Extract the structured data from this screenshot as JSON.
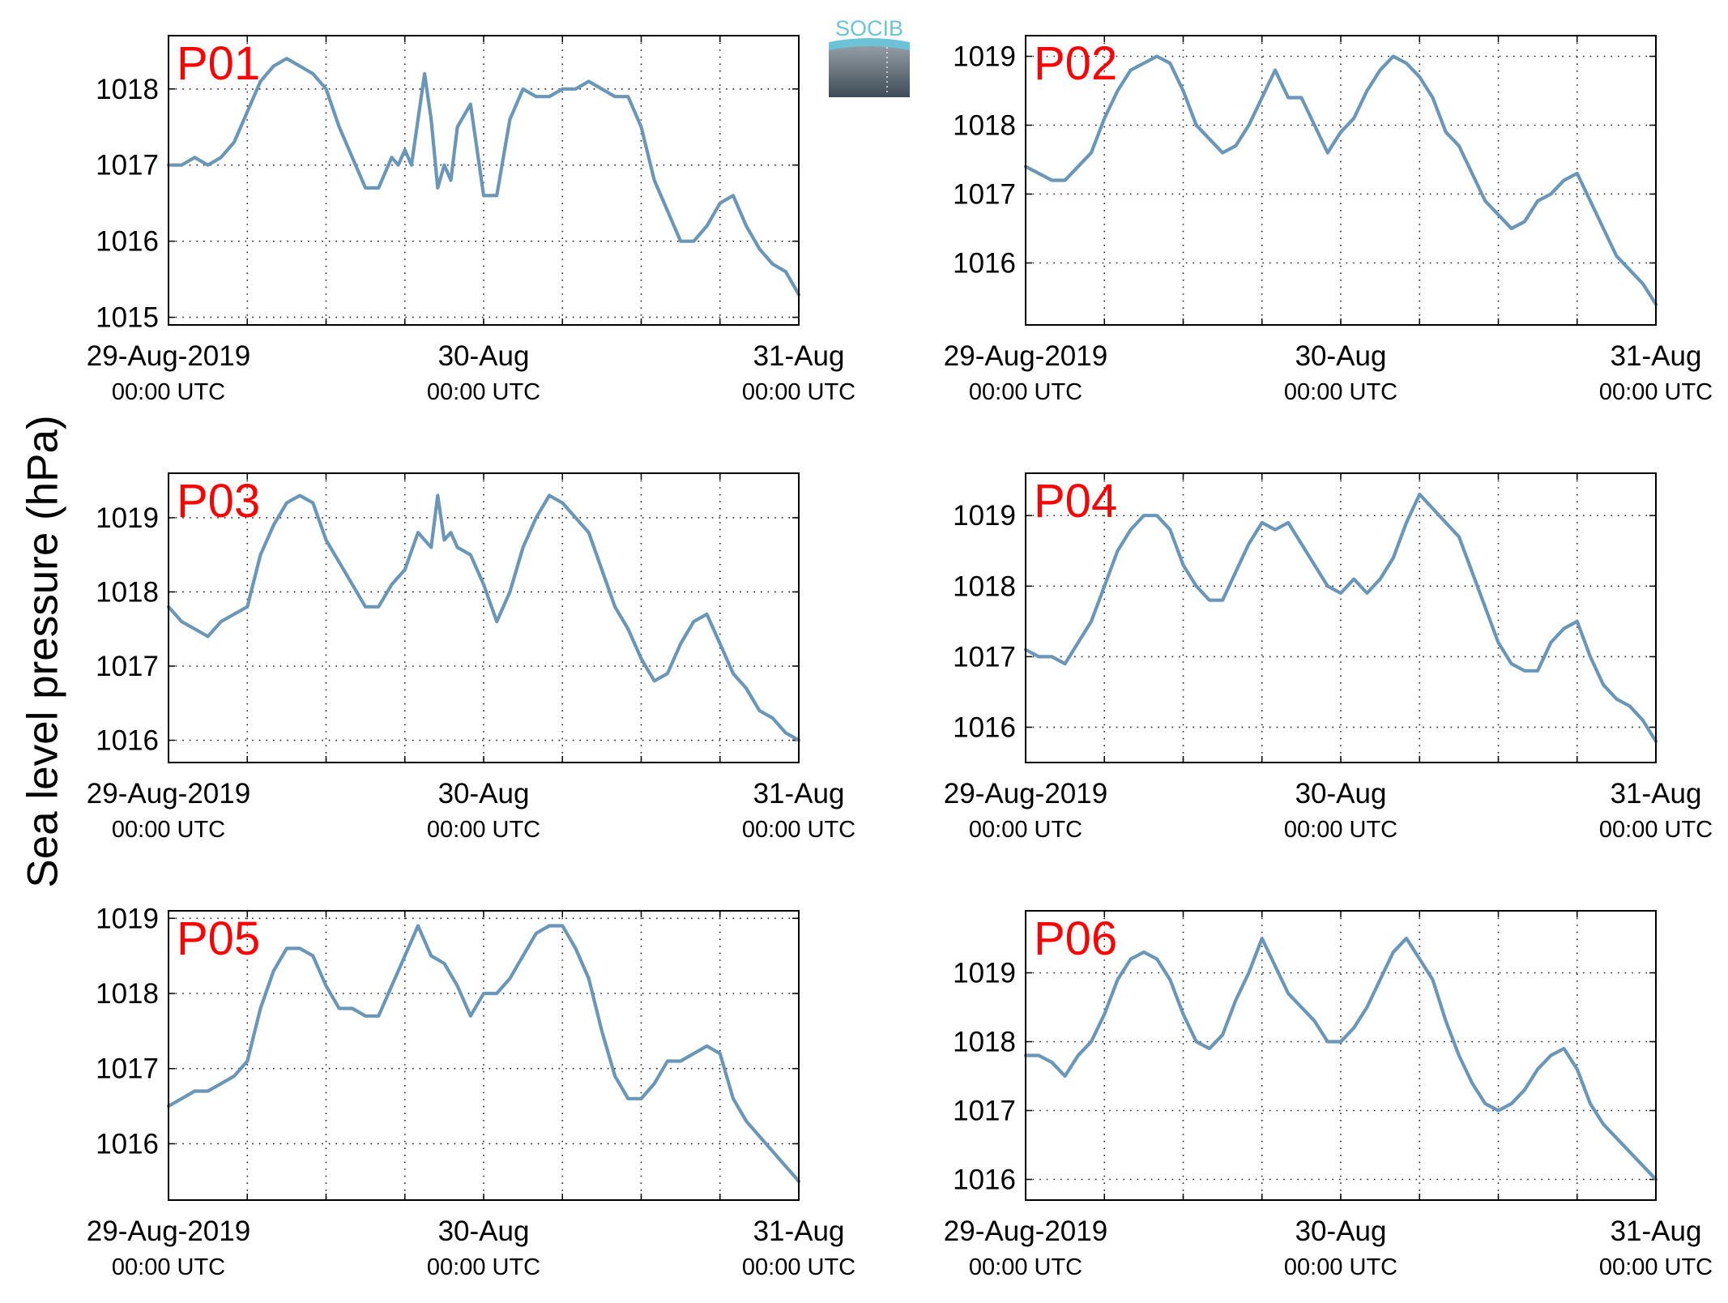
{
  "figure": {
    "ylabel": "Sea level pressure (hPa)",
    "logo_text": "SOCIB",
    "line_color": "#6a96b8",
    "panel_label_color": "#ff0000"
  },
  "chart_data": [
    {
      "type": "line",
      "panel": "P01",
      "xlim": [
        0,
        48
      ],
      "xticks": [
        0,
        24,
        48
      ],
      "xtick_labels": [
        [
          "29-Aug-2019",
          "00:00 UTC"
        ],
        [
          "30-Aug",
          "00:00 UTC"
        ],
        [
          "31-Aug",
          "00:00 UTC"
        ]
      ],
      "ylim": [
        1014.9,
        1018.7
      ],
      "yticks": [
        1015,
        1016,
        1017,
        1018
      ],
      "grid": true,
      "x": [
        0,
        1,
        2,
        3,
        4,
        5,
        6,
        7,
        8,
        9,
        10,
        11,
        12,
        13,
        14,
        15,
        16,
        16.5,
        17,
        17.5,
        18,
        18.5,
        19,
        19.5,
        20,
        20.5,
        21,
        21.5,
        22,
        23,
        24,
        25,
        26,
        27,
        28,
        29,
        30,
        31,
        32,
        33,
        34,
        35,
        36,
        37,
        38,
        39,
        40,
        41,
        42,
        43,
        44,
        45,
        46,
        47,
        48
      ],
      "y": [
        1017.0,
        1017.0,
        1017.1,
        1017.0,
        1017.1,
        1017.3,
        1017.7,
        1018.1,
        1018.3,
        1018.4,
        1018.3,
        1018.2,
        1018.0,
        1017.5,
        1017.1,
        1016.7,
        1016.7,
        1016.9,
        1017.1,
        1017.0,
        1017.2,
        1017.0,
        1017.6,
        1018.2,
        1017.6,
        1016.7,
        1017.0,
        1016.8,
        1017.5,
        1017.8,
        1016.6,
        1016.6,
        1017.6,
        1018.0,
        1017.9,
        1017.9,
        1018.0,
        1018.0,
        1018.1,
        1018.0,
        1017.9,
        1017.9,
        1017.5,
        1016.8,
        1016.4,
        1016.0,
        1016.0,
        1016.2,
        1016.5,
        1016.6,
        1016.2,
        1015.9,
        1015.7,
        1015.6,
        1015.3
      ]
    },
    {
      "type": "line",
      "panel": "P02",
      "xlim": [
        0,
        48
      ],
      "xticks": [
        0,
        24,
        48
      ],
      "xtick_labels": [
        [
          "29-Aug-2019",
          "00:00 UTC"
        ],
        [
          "30-Aug",
          "00:00 UTC"
        ],
        [
          "31-Aug",
          "00:00 UTC"
        ]
      ],
      "ylim": [
        1015.1,
        1019.3
      ],
      "yticks": [
        1016,
        1017,
        1018,
        1019
      ],
      "grid": true,
      "x": [
        0,
        1,
        2,
        3,
        4,
        5,
        6,
        7,
        8,
        9,
        10,
        11,
        12,
        13,
        14,
        15,
        16,
        17,
        18,
        19,
        20,
        21,
        22,
        23,
        24,
        25,
        26,
        27,
        28,
        29,
        30,
        31,
        32,
        33,
        34,
        35,
        36,
        37,
        38,
        39,
        40,
        41,
        42,
        43,
        44,
        45,
        46,
        47,
        48
      ],
      "y": [
        1017.4,
        1017.3,
        1017.2,
        1017.2,
        1017.4,
        1017.6,
        1018.1,
        1018.5,
        1018.8,
        1018.9,
        1019.0,
        1018.9,
        1018.5,
        1018.0,
        1017.8,
        1017.6,
        1017.7,
        1018.0,
        1018.4,
        1018.8,
        1018.4,
        1018.4,
        1018.0,
        1017.6,
        1017.9,
        1018.1,
        1018.5,
        1018.8,
        1019.0,
        1018.9,
        1018.7,
        1018.4,
        1017.9,
        1017.7,
        1017.3,
        1016.9,
        1016.7,
        1016.5,
        1016.6,
        1016.9,
        1017.0,
        1017.2,
        1017.3,
        1016.9,
        1016.5,
        1016.1,
        1015.9,
        1015.7,
        1015.4
      ]
    },
    {
      "type": "line",
      "panel": "P03",
      "xlim": [
        0,
        48
      ],
      "xticks": [
        0,
        24,
        48
      ],
      "xtick_labels": [
        [
          "29-Aug-2019",
          "00:00 UTC"
        ],
        [
          "30-Aug",
          "00:00 UTC"
        ],
        [
          "31-Aug",
          "00:00 UTC"
        ]
      ],
      "ylim": [
        1015.7,
        1019.6
      ],
      "yticks": [
        1016,
        1017,
        1018,
        1019
      ],
      "grid": true,
      "x": [
        0,
        1,
        2,
        3,
        4,
        5,
        6,
        7,
        8,
        9,
        10,
        11,
        12,
        13,
        14,
        15,
        16,
        17,
        18,
        19,
        20,
        20.5,
        21,
        21.5,
        22,
        23,
        24,
        25,
        26,
        27,
        28,
        29,
        30,
        31,
        32,
        33,
        34,
        35,
        36,
        37,
        38,
        39,
        40,
        41,
        42,
        43,
        44,
        45,
        46,
        47,
        48
      ],
      "y": [
        1017.8,
        1017.6,
        1017.5,
        1017.4,
        1017.6,
        1017.7,
        1017.8,
        1018.5,
        1018.9,
        1019.2,
        1019.3,
        1019.2,
        1018.7,
        1018.4,
        1018.1,
        1017.8,
        1017.8,
        1018.1,
        1018.3,
        1018.8,
        1018.6,
        1019.3,
        1018.7,
        1018.8,
        1018.6,
        1018.5,
        1018.1,
        1017.6,
        1018.0,
        1018.6,
        1019.0,
        1019.3,
        1019.2,
        1019.0,
        1018.8,
        1018.3,
        1017.8,
        1017.5,
        1017.1,
        1016.8,
        1016.9,
        1017.3,
        1017.6,
        1017.7,
        1017.3,
        1016.9,
        1016.7,
        1016.4,
        1016.3,
        1016.1,
        1016.0
      ]
    },
    {
      "type": "line",
      "panel": "P04",
      "xlim": [
        0,
        48
      ],
      "xticks": [
        0,
        24,
        48
      ],
      "xtick_labels": [
        [
          "29-Aug-2019",
          "00:00 UTC"
        ],
        [
          "30-Aug",
          "00:00 UTC"
        ],
        [
          "31-Aug",
          "00:00 UTC"
        ]
      ],
      "ylim": [
        1015.5,
        1019.6
      ],
      "yticks": [
        1016,
        1017,
        1018,
        1019
      ],
      "grid": true,
      "x": [
        0,
        1,
        2,
        3,
        4,
        5,
        6,
        7,
        8,
        9,
        10,
        11,
        12,
        13,
        14,
        15,
        16,
        17,
        18,
        19,
        20,
        21,
        22,
        23,
        24,
        25,
        26,
        27,
        28,
        29,
        30,
        31,
        32,
        33,
        34,
        35,
        36,
        37,
        38,
        39,
        40,
        41,
        42,
        43,
        44,
        45,
        46,
        47,
        48
      ],
      "y": [
        1017.1,
        1017.0,
        1017.0,
        1016.9,
        1017.2,
        1017.5,
        1018.0,
        1018.5,
        1018.8,
        1019.0,
        1019.0,
        1018.8,
        1018.3,
        1018.0,
        1017.8,
        1017.8,
        1018.2,
        1018.6,
        1018.9,
        1018.8,
        1018.9,
        1018.6,
        1018.3,
        1018.0,
        1017.9,
        1018.1,
        1017.9,
        1018.1,
        1018.4,
        1018.9,
        1019.3,
        1019.1,
        1018.9,
        1018.7,
        1018.2,
        1017.7,
        1017.2,
        1016.9,
        1016.8,
        1016.8,
        1017.2,
        1017.4,
        1017.5,
        1017.0,
        1016.6,
        1016.4,
        1016.3,
        1016.1,
        1015.8
      ]
    },
    {
      "type": "line",
      "panel": "P05",
      "xlim": [
        0,
        48
      ],
      "xticks": [
        0,
        24,
        48
      ],
      "xtick_labels": [
        [
          "29-Aug-2019",
          "00:00 UTC"
        ],
        [
          "30-Aug",
          "00:00 UTC"
        ],
        [
          "31-Aug",
          "00:00 UTC"
        ]
      ],
      "ylim": [
        1015.25,
        1019.1
      ],
      "yticks": [
        1016,
        1017,
        1018,
        1019
      ],
      "grid": true,
      "x": [
        0,
        1,
        2,
        3,
        4,
        5,
        6,
        7,
        8,
        9,
        10,
        11,
        12,
        13,
        14,
        15,
        16,
        17,
        18,
        19,
        20,
        21,
        22,
        23,
        24,
        25,
        26,
        27,
        28,
        29,
        30,
        31,
        32,
        33,
        34,
        35,
        36,
        37,
        38,
        39,
        40,
        41,
        42,
        43,
        44,
        45,
        46,
        47,
        48
      ],
      "y": [
        1016.5,
        1016.6,
        1016.7,
        1016.7,
        1016.8,
        1016.9,
        1017.1,
        1017.8,
        1018.3,
        1018.6,
        1018.6,
        1018.5,
        1018.1,
        1017.8,
        1017.8,
        1017.7,
        1017.7,
        1018.1,
        1018.5,
        1018.9,
        1018.5,
        1018.4,
        1018.1,
        1017.7,
        1018.0,
        1018.0,
        1018.2,
        1018.5,
        1018.8,
        1018.9,
        1018.9,
        1018.6,
        1018.2,
        1017.5,
        1016.9,
        1016.6,
        1016.6,
        1016.8,
        1017.1,
        1017.1,
        1017.2,
        1017.3,
        1017.2,
        1016.6,
        1016.3,
        1016.1,
        1015.9,
        1015.7,
        1015.5
      ]
    },
    {
      "type": "line",
      "panel": "P06",
      "xlim": [
        0,
        48
      ],
      "xticks": [
        0,
        24,
        48
      ],
      "xtick_labels": [
        [
          "29-Aug-2019",
          "00:00 UTC"
        ],
        [
          "30-Aug",
          "00:00 UTC"
        ],
        [
          "31-Aug",
          "00:00 UTC"
        ]
      ],
      "ylim": [
        1015.7,
        1019.9
      ],
      "yticks": [
        1016,
        1017,
        1018,
        1019
      ],
      "grid": true,
      "x": [
        0,
        1,
        2,
        3,
        4,
        5,
        6,
        7,
        8,
        9,
        10,
        11,
        12,
        13,
        14,
        15,
        16,
        17,
        18,
        19,
        20,
        21,
        22,
        23,
        24,
        25,
        26,
        27,
        28,
        29,
        30,
        31,
        32,
        33,
        34,
        35,
        36,
        37,
        38,
        39,
        40,
        41,
        42,
        43,
        44,
        45,
        46,
        47,
        48
      ],
      "y": [
        1017.8,
        1017.8,
        1017.7,
        1017.5,
        1017.8,
        1018.0,
        1018.4,
        1018.9,
        1019.2,
        1019.3,
        1019.2,
        1018.9,
        1018.4,
        1018.0,
        1017.9,
        1018.1,
        1018.6,
        1019.0,
        1019.5,
        1019.1,
        1018.7,
        1018.5,
        1018.3,
        1018.0,
        1018.0,
        1018.2,
        1018.5,
        1018.9,
        1019.3,
        1019.5,
        1019.2,
        1018.9,
        1018.3,
        1017.8,
        1017.4,
        1017.1,
        1017.0,
        1017.1,
        1017.3,
        1017.6,
        1017.8,
        1017.9,
        1017.6,
        1017.1,
        1016.8,
        1016.6,
        1016.4,
        1016.2,
        1016.0
      ]
    }
  ]
}
